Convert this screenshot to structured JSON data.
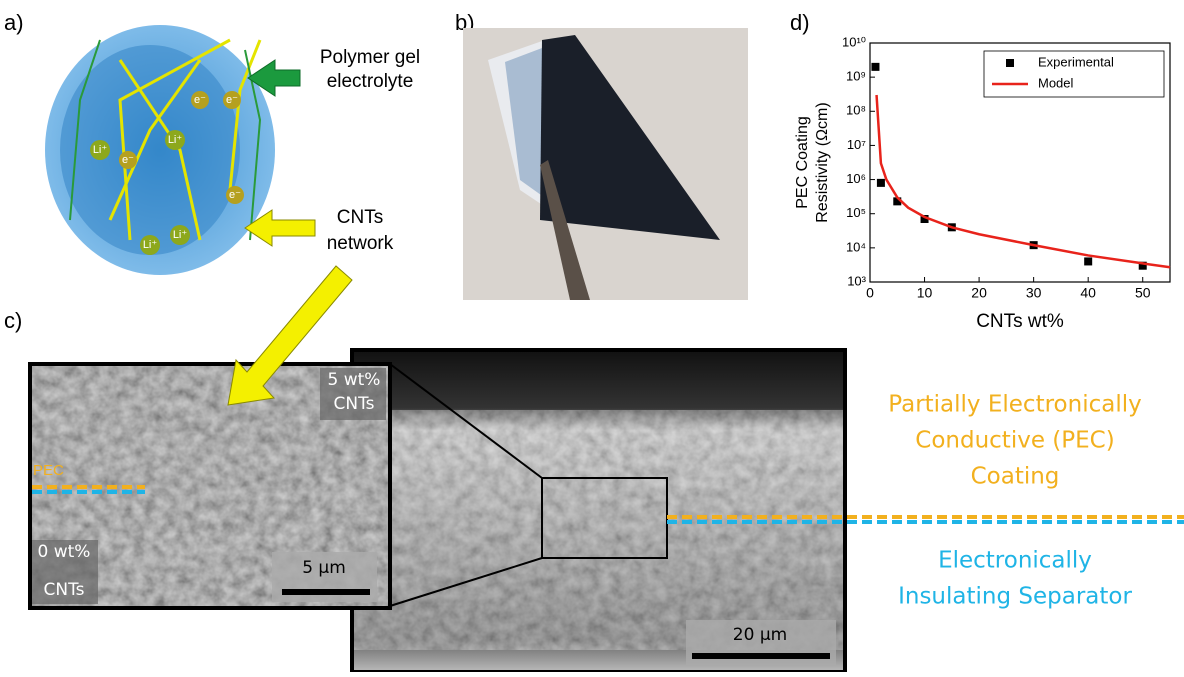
{
  "panel_labels": [
    "a)",
    "b)",
    "c)",
    "d)"
  ],
  "panel_a": {
    "callouts": [
      "Polymer gel",
      "electrolyte",
      "CNTs",
      "network"
    ],
    "ions": [
      "Li⁺",
      "e⁻"
    ]
  },
  "panel_c": {
    "inset_top": [
      "5 wt%",
      "CNTs"
    ],
    "interface": "PEC",
    "inset_bottom": [
      "0 wt%",
      "CNTs"
    ],
    "inset_scale": "5 µm",
    "main_scale": "20 µm",
    "coating_label": [
      "Partially Electronically",
      "Conductive (PEC)",
      "Coating"
    ],
    "separator_label": [
      "Electronically",
      "Insulating Separator"
    ]
  },
  "chart_data": {
    "type": "scatter",
    "xlabel": "CNTs wt%",
    "ylabel": [
      "PEC Coating",
      "Resistivity (Ωcm)"
    ],
    "xlim": [
      0,
      55
    ],
    "xticks": [
      0,
      10,
      20,
      30,
      40,
      50
    ],
    "ylim": [
      1000,
      10000000000
    ],
    "log_y": true,
    "yticks": [
      {
        "value": 1000,
        "label": "10³"
      },
      {
        "value": 10000,
        "label": "10⁴"
      },
      {
        "value": 100000,
        "label": "10⁵"
      },
      {
        "value": 1000000,
        "label": "10⁶"
      },
      {
        "value": 10000000,
        "label": "10⁷"
      },
      {
        "value": 100000000,
        "label": "10⁸"
      },
      {
        "value": 1000000000,
        "label": "10⁹"
      },
      {
        "value": 10000000000,
        "label": "10¹⁰"
      }
    ],
    "legend": "upper right",
    "series": [
      {
        "name": "Experimental",
        "type": "scatter",
        "color": "#000000",
        "x": [
          1,
          2,
          5,
          10,
          15,
          30,
          40,
          50
        ],
        "values": [
          2000000000,
          800000,
          230000,
          70000,
          40000,
          12000,
          4000,
          3000
        ]
      },
      {
        "name": "Model",
        "type": "line",
        "color": "#e8231b",
        "x": [
          1.2,
          2,
          3,
          5,
          7,
          10,
          15,
          20,
          30,
          40,
          50,
          55
        ],
        "values": [
          300000000,
          3000000,
          1000000,
          300000,
          150000,
          80000,
          40000,
          25000,
          12000,
          6000,
          3500,
          2700
        ]
      }
    ]
  }
}
